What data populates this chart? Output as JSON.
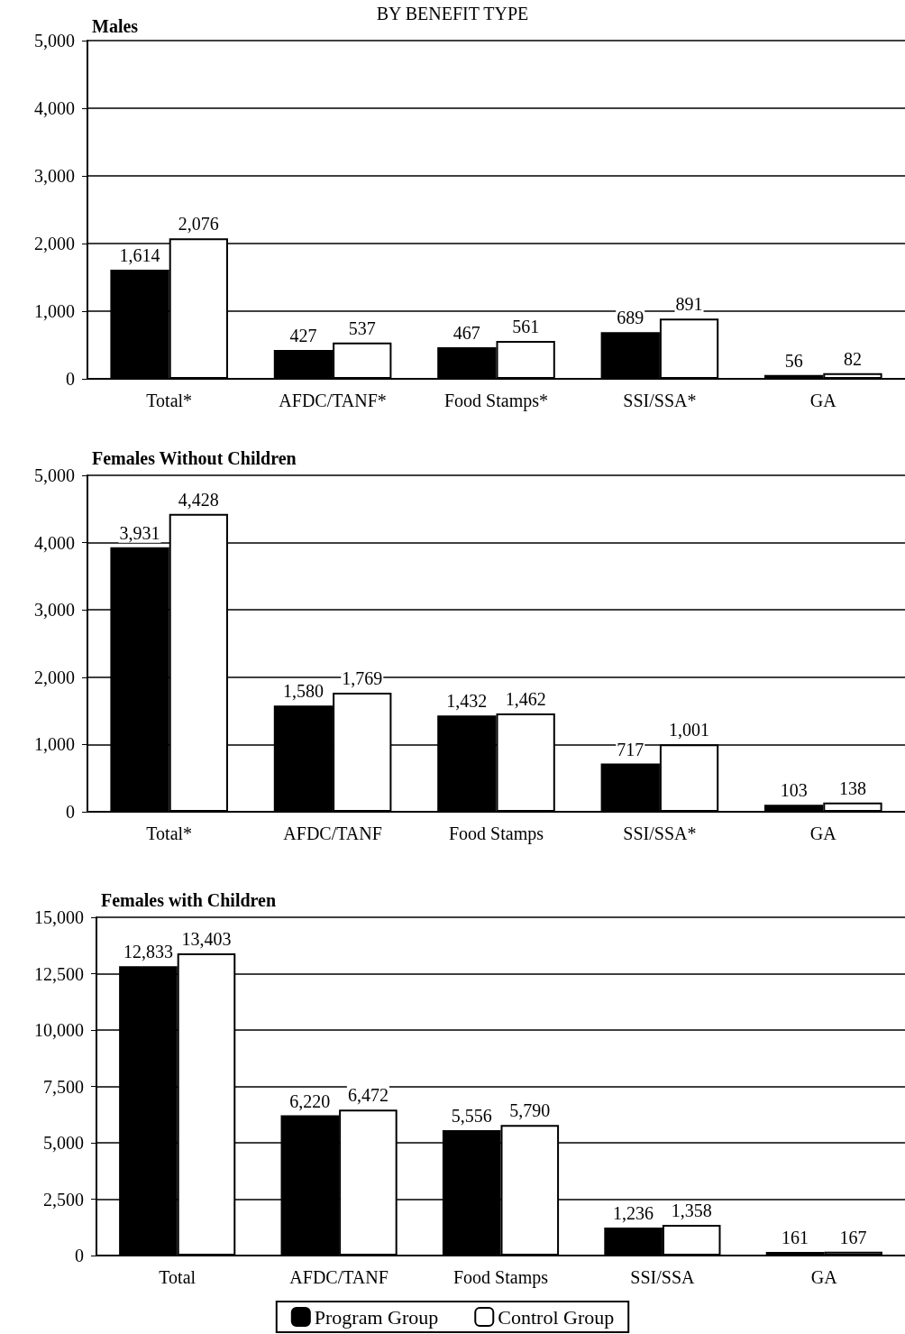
{
  "chart_data": [
    {
      "type": "bar",
      "title": "BY BENEFIT TYPE",
      "subtitle": "Males",
      "categories": [
        "Total*",
        "AFDC/TANF*",
        "Food Stamps*",
        "SSI/SSA*",
        "GA"
      ],
      "series": [
        {
          "color": "#000000",
          "values": [
            1614,
            427,
            467,
            689,
            56
          ],
          "value_labels": [
            "1,614",
            "427",
            "467",
            "689",
            "56"
          ]
        },
        {
          "color": "#ffffff",
          "values": [
            2076,
            537,
            561,
            891,
            82
          ],
          "value_labels": [
            "2,076",
            "537",
            "561",
            "891",
            "82"
          ]
        }
      ],
      "ylim": [
        0,
        5000
      ],
      "yticks": [
        {
          "value": 0,
          "label": "0"
        },
        {
          "value": 1000,
          "label": "1,000"
        },
        {
          "value": 2000,
          "label": "2,000"
        },
        {
          "value": 3000,
          "label": "3,000"
        },
        {
          "value": 4000,
          "label": "4,000"
        },
        {
          "value": 5000,
          "label": "5,000"
        }
      ],
      "grid": "y",
      "legend": false
    },
    {
      "type": "bar",
      "title": "Females Without Children",
      "categories": [
        "Total*",
        "AFDC/TANF",
        "Food Stamps",
        "SSI/SSA*",
        "GA"
      ],
      "series": [
        {
          "color": "#000000",
          "values": [
            3931,
            1580,
            1432,
            717,
            103
          ],
          "value_labels": [
            "3,931",
            "1,580",
            "1,432",
            "717",
            "103"
          ]
        },
        {
          "color": "#ffffff",
          "values": [
            4428,
            1769,
            1462,
            1001,
            138
          ],
          "value_labels": [
            "4,428",
            "1,769",
            "1,462",
            "1,001",
            "138"
          ]
        }
      ],
      "ylim": [
        0,
        5000
      ],
      "yticks": [
        {
          "value": 0,
          "label": "0"
        },
        {
          "value": 1000,
          "label": "1,000"
        },
        {
          "value": 2000,
          "label": "2,000"
        },
        {
          "value": 3000,
          "label": "3,000"
        },
        {
          "value": 4000,
          "label": "4,000"
        },
        {
          "value": 5000,
          "label": "5,000"
        }
      ],
      "grid": "y",
      "legend": false
    },
    {
      "type": "bar",
      "title": "Females with Children",
      "categories": [
        "Total",
        "AFDC/TANF",
        "Food Stamps",
        "SSI/SSA",
        "GA"
      ],
      "series": [
        {
          "name": "Program Group",
          "color": "#000000",
          "values": [
            12833,
            6220,
            5556,
            1236,
            161
          ],
          "value_labels": [
            "12,833",
            "6,220",
            "5,556",
            "1,236",
            "161"
          ]
        },
        {
          "name": "Control Group",
          "color": "#ffffff",
          "values": [
            13403,
            6472,
            5790,
            1358,
            167
          ],
          "value_labels": [
            "13,403",
            "6,472",
            "5,790",
            "1,358",
            "167"
          ]
        }
      ],
      "ylim": [
        0,
        15000
      ],
      "yticks": [
        {
          "value": 0,
          "label": "0"
        },
        {
          "value": 2500,
          "label": "2,500"
        },
        {
          "value": 5000,
          "label": "5,000"
        },
        {
          "value": 7500,
          "label": "7,500"
        },
        {
          "value": 10000,
          "label": "10,000"
        },
        {
          "value": 12500,
          "label": "12,500"
        },
        {
          "value": 15000,
          "label": "15,000"
        }
      ],
      "grid": "y",
      "legend": "bottom"
    }
  ]
}
